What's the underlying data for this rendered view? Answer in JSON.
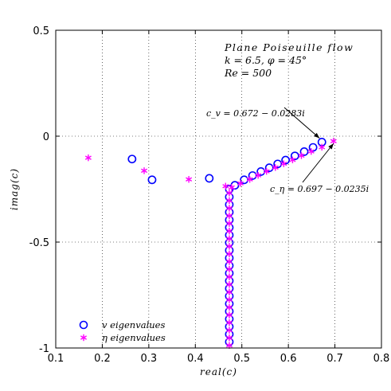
{
  "chart_data": {
    "type": "scatter",
    "xlabel": "real(c)",
    "ylabel": "imag(c)",
    "xlim": [
      0.1,
      0.8
    ],
    "ylim": [
      -1,
      0.5
    ],
    "xticks": [
      "0.1",
      "0.2",
      "0.3",
      "0.4",
      "0.5",
      "0.6",
      "0.7",
      "0.8"
    ],
    "yticks": [
      "0.5",
      "0",
      "-0.5",
      "-1"
    ],
    "grid": true,
    "legend_position": "bottom-left",
    "title_lines": [
      "Plane Poiseuille flow",
      "k = 6.5, φ = 45°",
      "Re = 500"
    ],
    "annotations": [
      {
        "text": "c_v = 0.672 − 0.0283i",
        "x": 0.672,
        "y": -0.0283
      },
      {
        "text": "c_η = 0.697 − 0.0235i",
        "x": 0.697,
        "y": -0.0235
      }
    ],
    "series": [
      {
        "name": "v eigenvalues",
        "marker": "circle",
        "color": "#0000ff",
        "points": [
          [
            0.672,
            -0.028
          ],
          [
            0.653,
            -0.053
          ],
          [
            0.634,
            -0.073
          ],
          [
            0.614,
            -0.093
          ],
          [
            0.594,
            -0.113
          ],
          [
            0.577,
            -0.131
          ],
          [
            0.559,
            -0.149
          ],
          [
            0.541,
            -0.167
          ],
          [
            0.523,
            -0.186
          ],
          [
            0.505,
            -0.206
          ],
          [
            0.485,
            -0.232
          ],
          [
            0.264,
            -0.108
          ],
          [
            0.307,
            -0.206
          ],
          [
            0.43,
            -0.199
          ],
          [
            0.473,
            -0.25
          ],
          [
            0.473,
            -0.287
          ],
          [
            0.473,
            -0.323
          ],
          [
            0.473,
            -0.359
          ],
          [
            0.473,
            -0.395
          ],
          [
            0.473,
            -0.431
          ],
          [
            0.473,
            -0.467
          ],
          [
            0.473,
            -0.503
          ],
          [
            0.473,
            -0.539
          ],
          [
            0.473,
            -0.575
          ],
          [
            0.473,
            -0.611
          ],
          [
            0.473,
            -0.647
          ],
          [
            0.473,
            -0.683
          ],
          [
            0.473,
            -0.719
          ],
          [
            0.473,
            -0.755
          ],
          [
            0.473,
            -0.791
          ],
          [
            0.473,
            -0.827
          ],
          [
            0.473,
            -0.863
          ],
          [
            0.473,
            -0.899
          ],
          [
            0.473,
            -0.935
          ],
          [
            0.473,
            -0.971
          ]
        ]
      },
      {
        "name": "η eigenvalues",
        "marker": "star",
        "color": "#ff00ff",
        "points": [
          [
            0.697,
            -0.0235
          ],
          [
            0.672,
            -0.052
          ],
          [
            0.649,
            -0.072
          ],
          [
            0.628,
            -0.092
          ],
          [
            0.609,
            -0.112
          ],
          [
            0.59,
            -0.13
          ],
          [
            0.572,
            -0.148
          ],
          [
            0.553,
            -0.166
          ],
          [
            0.535,
            -0.185
          ],
          [
            0.517,
            -0.204
          ],
          [
            0.497,
            -0.223
          ],
          [
            0.478,
            -0.242
          ],
          [
            0.17,
            -0.102
          ],
          [
            0.29,
            -0.163
          ],
          [
            0.386,
            -0.204
          ],
          [
            0.465,
            -0.236
          ],
          [
            0.473,
            -0.268
          ],
          [
            0.473,
            -0.304
          ],
          [
            0.473,
            -0.34
          ],
          [
            0.473,
            -0.376
          ],
          [
            0.473,
            -0.412
          ],
          [
            0.473,
            -0.448
          ],
          [
            0.473,
            -0.484
          ],
          [
            0.473,
            -0.52
          ],
          [
            0.473,
            -0.556
          ],
          [
            0.473,
            -0.592
          ],
          [
            0.473,
            -0.628
          ],
          [
            0.473,
            -0.664
          ],
          [
            0.473,
            -0.7
          ],
          [
            0.473,
            -0.736
          ],
          [
            0.473,
            -0.772
          ],
          [
            0.473,
            -0.808
          ],
          [
            0.473,
            -0.844
          ],
          [
            0.473,
            -0.88
          ],
          [
            0.473,
            -0.916
          ],
          [
            0.473,
            -0.952
          ],
          [
            0.473,
            -0.988
          ]
        ]
      }
    ]
  }
}
